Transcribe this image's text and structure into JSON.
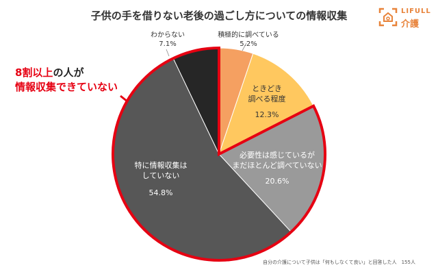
{
  "chart_data": {
    "type": "pie",
    "title": "子供の手を借りない老後の過ごし方についての情報収集",
    "start": "top",
    "direction": "clockwise",
    "slices": [
      {
        "label": "積極的に調べている",
        "value": 5.2,
        "display": "5.2%",
        "color": "#F5A061"
      },
      {
        "label": "ときどき調べる程度",
        "value": 12.3,
        "display": "12.3%",
        "color": "#FFC85F"
      },
      {
        "label": "必要性は感じているがまだほとんど調べていない",
        "value": 20.6,
        "display": "20.6%",
        "color": "#9A9A9A"
      },
      {
        "label": "特に情報収集はしていない",
        "value": 54.8,
        "display": "54.8%",
        "color": "#575757"
      },
      {
        "label": "わからない",
        "value": 7.1,
        "display": "7.1%",
        "color": "#262626"
      }
    ],
    "highlight_color": "#E60012",
    "annotation": {
      "red": "8割以上",
      "text1": "の人が",
      "text2": "情報収集できていない"
    },
    "footnote": "自分の介護について子供は「何もしなくて良い」と回答した人　155人"
  },
  "logo": {
    "line1": "LIFULL",
    "line2": "介護",
    "color": "#E8833A"
  },
  "labels": {
    "s0": "積極的に調べている",
    "s1a": "ときどき",
    "s1b": "調べる程度",
    "s2a": "必要性は感じているが",
    "s2b": "まだほとんど調べていない",
    "s3a": "特に情報収集は",
    "s3b": "していない",
    "s4": "わからない"
  }
}
